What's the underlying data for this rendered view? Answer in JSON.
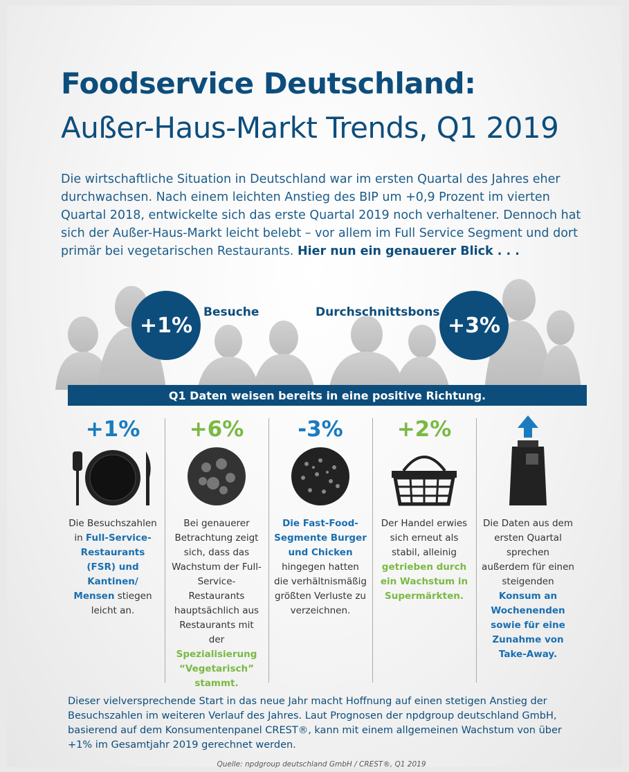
{
  "header": {
    "title": "Foodservice Deutschland:",
    "subtitle": "Außer-Haus-Markt Trends, Q1 2019"
  },
  "intro": [
    "Die wirtschaftliche Situation in Deutschland war im ersten Quartal des Jahres eher durchwachsen. Nach einem leichten Anstieg des BIP um +0,9 Prozent im vierten Quartal 2018, entwickelte sich das erste Quartal 2019 noch verhaltener. Dennoch hat sich der Außer-Haus-Markt leicht belebt – vor allem im Full Service Segment und dort primär bei vegetarischen Restaurants.",
    "Hier nun ein genauerer Blick . . ."
  ],
  "kpis": [
    {
      "value": "+1%",
      "label": "Besuche"
    },
    {
      "value": "+3%",
      "label": "Durchschnittsbons"
    }
  ],
  "banner": "Q1 Daten weisen bereits in eine positive Richtung.",
  "columns": [
    {
      "value": "+1%",
      "text": [
        "Die Besuchszahlen in",
        "Full-Service-Restaurants (FSR) und Kantinen/ Mensen",
        "stiegen leicht an."
      ]
    },
    {
      "value": "+6%",
      "text": [
        "Bei genauerer Betrachtung zeigt sich, dass das Wachstum der Full-Service-Restaurants hauptsächlich aus Restaurants mit der",
        "Spezialisierung “Vegetarisch” stammt."
      ]
    },
    {
      "value": "-3%",
      "text": [
        "Die Fast-Food-Segmente Burger und Chicken",
        "hingegen hatten die verhältnismäßig größten Verluste zu verzeichnen."
      ]
    },
    {
      "value": "+2%",
      "text": [
        "Der Handel erwies sich erneut als stabil, alleinig",
        "getrieben durch ein Wachstum in Supermärkten."
      ]
    },
    {
      "text": [
        "Die Daten aus dem ersten Quartal sprechen außerdem für einen steigenden",
        "Konsum an Wochenenden sowie für eine Zunahme von Take-Away."
      ]
    }
  ],
  "footer": "Dieser vielversprechende Start in das neue Jahr macht Hoffnung auf einen stetigen Anstieg der Besuchszahlen im weiteren Verlauf des Jahres. Laut Prognosen der npdgroup deutschland GmbH, basierend auf dem Konsumentenpanel CREST®, kann mit einem allgemeinen Wachstum von über +1% im Gesamtjahr 2019 gerechnet werden.",
  "source": "Quelle: npdgroup deutschland GmbH / CREST®, Q1 2019"
}
